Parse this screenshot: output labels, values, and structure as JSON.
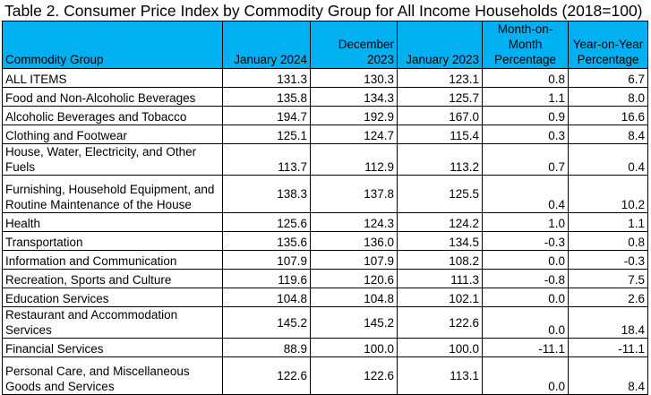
{
  "title": "Table 2. Consumer Price Index by Commodity Group for All Income Households (2018=100)",
  "header_color": "#00b0f0",
  "columns": [
    "Commodity Group",
    "January 2024",
    "December 2023",
    "January 2023",
    "Month-on-Month\nPercentage",
    "Year-on-Year\nPercentage"
  ],
  "rows": [
    {
      "label": "ALL ITEMS",
      "values": [
        "131.3",
        "130.3",
        "123.1",
        "0.8",
        "6.7"
      ]
    },
    {
      "label": "Food and Non-Alcoholic Beverages",
      "values": [
        "135.8",
        "134.3",
        "125.7",
        "1.1",
        "8.0"
      ]
    },
    {
      "label": "Alcoholic Beverages and Tobacco",
      "values": [
        "194.7",
        "192.9",
        "167.0",
        "0.9",
        "16.6"
      ]
    },
    {
      "label": "Clothing and Footwear",
      "values": [
        "125.1",
        "124.7",
        "115.4",
        "0.3",
        "8.4"
      ]
    },
    {
      "label": "House, Water, Electricity, and Other Fuels",
      "values": [
        "113.7",
        "112.9",
        "113.2",
        "0.7",
        "0.4"
      ]
    },
    {
      "label": "Furnishing, Household Equipment, and Routine Maintenance of the House",
      "values": [
        "138.3",
        "137.8",
        "125.5",
        "0.4",
        "10.2"
      ]
    },
    {
      "label": "Health",
      "values": [
        "125.6",
        "124.3",
        "124.2",
        "1.0",
        "1.1"
      ]
    },
    {
      "label": "Transportation",
      "values": [
        "135.6",
        "136.0",
        "134.5",
        "-0.3",
        "0.8"
      ]
    },
    {
      "label": "Information and Communication",
      "values": [
        "107.9",
        "107.9",
        "108.2",
        "0.0",
        "-0.3"
      ]
    },
    {
      "label": "Recreation, Sports and Culture",
      "values": [
        "119.6",
        "120.6",
        "111.3",
        "-0.8",
        "7.5"
      ]
    },
    {
      "label": "Education Services",
      "values": [
        "104.8",
        "104.8",
        "102.1",
        "0.0",
        "2.6"
      ]
    },
    {
      "label": "Restaurant and Accommodation Services",
      "values": [
        "145.2",
        "145.2",
        "122.6",
        "0.0",
        "18.4"
      ]
    },
    {
      "label": "Financial Services",
      "values": [
        "88.9",
        "100.0",
        "100.0",
        "-11.1",
        "-11.1"
      ]
    },
    {
      "label": "Personal Care, and Miscellaneous Goods and Services",
      "values": [
        "122.6",
        "122.6",
        "113.1",
        "0.0",
        "8.4"
      ]
    }
  ]
}
